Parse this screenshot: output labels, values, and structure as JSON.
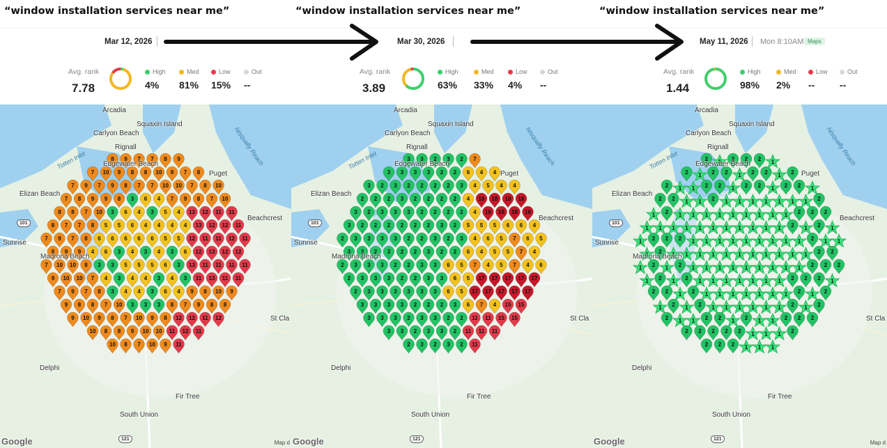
{
  "panels": [
    {
      "query": "“window installation services near me”",
      "date": "Mar 12, 2026",
      "time": "",
      "badge": "",
      "avg_rank_label": "Avg. rank",
      "avg_rank": "7.78",
      "ring_green_fraction": 0.04,
      "ring_yellow_fraction": 0.81,
      "ring_red_fraction": 0.15,
      "categories": [
        {
          "label": "High",
          "value": "4%",
          "color": "#3ecf6b"
        },
        {
          "label": "Med",
          "value": "81%",
          "color": "#f2b820"
        },
        {
          "label": "Low",
          "value": "15%",
          "color": "#e8394b"
        },
        {
          "label": "Out",
          "value": "--",
          "color": "#d8d8d8"
        }
      ],
      "places": [
        "Arcadia",
        "Squaxin Island",
        "Carlyon Beach",
        "Rignall",
        "Edgewater Beach",
        "Puget",
        "Elizan Beach",
        "Sunrise",
        "Madrona Beach",
        "Delphi",
        "Fir Tree",
        "South Union",
        "Beachcrest",
        "St Cla"
      ],
      "water_labels": [
        "Totten Inlet",
        "Nisqually Reach"
      ],
      "highways": [
        "101",
        "121"
      ],
      "google": "Google",
      "mapdata": "Map d"
    },
    {
      "query": "“window installation services near me”",
      "date": "Mar 30, 2026",
      "time": "",
      "badge": "",
      "avg_rank_label": "Avg. rank",
      "avg_rank": "3.89",
      "ring_green_fraction": 0.63,
      "ring_yellow_fraction": 0.33,
      "ring_red_fraction": 0.04,
      "categories": [
        {
          "label": "High",
          "value": "63%",
          "color": "#3ecf6b"
        },
        {
          "label": "Med",
          "value": "33%",
          "color": "#f2b820"
        },
        {
          "label": "Low",
          "value": "4%",
          "color": "#e8394b"
        },
        {
          "label": "Out",
          "value": "--",
          "color": "#d8d8d8"
        }
      ],
      "places": [
        "Arcadia",
        "Squaxin Island",
        "Carlyon Beach",
        "Rignall",
        "Edgewater Beach",
        "Puget",
        "Elizan Beach",
        "Sunrise",
        "Madrona Beach",
        "Delphi",
        "Fir Tree",
        "South Union",
        "Beachcrest",
        "St Cla"
      ],
      "water_labels": [
        "Totten Inlet",
        "Nisqually Reach"
      ],
      "highways": [
        "101",
        "121"
      ],
      "google": "Google",
      "mapdata": ""
    },
    {
      "query": "“window installation services near me”",
      "date": "May 11, 2026",
      "time": "Mon 8:10AM",
      "badge": "Maps",
      "avg_rank_label": "Avg. rank",
      "avg_rank": "1.44",
      "ring_green_fraction": 0.98,
      "ring_yellow_fraction": 0.02,
      "ring_red_fraction": 0.0,
      "categories": [
        {
          "label": "High",
          "value": "98%",
          "color": "#3ecf6b"
        },
        {
          "label": "Med",
          "value": "2%",
          "color": "#f2b820"
        },
        {
          "label": "Low",
          "value": "--",
          "color": "#e8394b"
        },
        {
          "label": "Out",
          "value": "--",
          "color": "#d8d8d8"
        }
      ],
      "places": [
        "Arcadia",
        "Squaxin Island",
        "Carlyon Beach",
        "Rignall",
        "Edgewater Beach",
        "Puget",
        "Elizan Beach",
        "Sunrise",
        "Madrona Beach",
        "Delphi",
        "Fir Tree",
        "South Union",
        "Beachcrest",
        "St Cla"
      ],
      "water_labels": [
        "Totten Inlet",
        "Nisqually Reach"
      ],
      "highways": [
        "101",
        "121"
      ],
      "google": "Google",
      "mapdata": "Map d"
    }
  ],
  "colors": {
    "top3_green": "#22c365",
    "top3_star": "#39e07a",
    "mid_yellow": "#f4c21e",
    "mid_orange": "#ef8a1c",
    "low_red": "#e23a4a",
    "dark_red": "#c8182a",
    "map_land": "#e6f1e3",
    "map_water": "#9fd0ef"
  }
}
